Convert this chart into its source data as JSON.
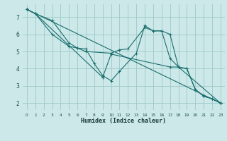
{
  "xlabel": "Humidex (Indice chaleur)",
  "bg_color": "#cce8e8",
  "grid_color": "#9dc8c8",
  "line_color": "#1a6e6e",
  "xlim": [
    -0.5,
    23.5
  ],
  "ylim": [
    1.6,
    7.75
  ],
  "xticks": [
    0,
    1,
    2,
    3,
    4,
    5,
    6,
    7,
    8,
    9,
    10,
    11,
    12,
    13,
    14,
    15,
    16,
    17,
    18,
    19,
    20,
    21,
    22,
    23
  ],
  "yticks": [
    2,
    3,
    4,
    5,
    6,
    7
  ],
  "series": [
    {
      "x": [
        0,
        1,
        3,
        5,
        6,
        7,
        8,
        9,
        10,
        11,
        13,
        14,
        15,
        16,
        17,
        18,
        19,
        20,
        21,
        22,
        23
      ],
      "y": [
        7.45,
        7.2,
        6.8,
        5.5,
        5.2,
        5.15,
        4.3,
        3.6,
        3.3,
        3.85,
        4.9,
        6.5,
        6.2,
        6.2,
        4.6,
        4.1,
        4.0,
        2.8,
        2.4,
        2.25,
        2.0
      ]
    },
    {
      "x": [
        0,
        1,
        3,
        5,
        6,
        7,
        10,
        11,
        12,
        14,
        15,
        16,
        17,
        18,
        19,
        20,
        21,
        22,
        23
      ],
      "y": [
        7.45,
        7.2,
        6.0,
        5.3,
        5.2,
        5.0,
        4.9,
        5.1,
        5.15,
        6.4,
        6.2,
        6.2,
        6.0,
        4.1,
        4.0,
        2.8,
        2.4,
        2.25,
        2.0
      ]
    },
    {
      "x": [
        0,
        23
      ],
      "y": [
        7.45,
        2.0
      ]
    },
    {
      "x": [
        0,
        1,
        9,
        10,
        17,
        18,
        23
      ],
      "y": [
        7.45,
        7.2,
        3.5,
        4.85,
        4.1,
        4.1,
        2.0
      ]
    }
  ]
}
